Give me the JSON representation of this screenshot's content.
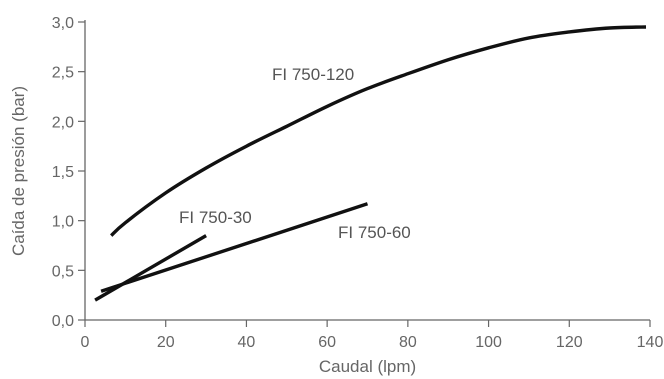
{
  "chart_data": {
    "type": "line",
    "xlabel": "Caudal (lpm)",
    "ylabel": "Caída de presión (bar)",
    "xlim": [
      0,
      140
    ],
    "ylim": [
      0,
      3.0
    ],
    "x_ticks": [
      0,
      20,
      40,
      60,
      80,
      100,
      120,
      140
    ],
    "x_tick_labels": [
      "0",
      "20",
      "40",
      "60",
      "80",
      "100",
      "120",
      "140"
    ],
    "y_ticks": [
      0,
      0.5,
      1.0,
      1.5,
      2.0,
      2.5,
      3.0
    ],
    "y_tick_labels": [
      "0,0",
      "0,5",
      "1,0",
      "1,5",
      "2,0",
      "2,5",
      "3,0"
    ],
    "grid": false,
    "series": [
      {
        "name": "FI 750-120",
        "x": [
          6.5,
          10,
          20,
          30,
          40,
          50,
          60,
          70,
          80,
          90,
          100,
          110,
          120,
          130,
          139
        ],
        "y": [
          0.85,
          0.98,
          1.28,
          1.53,
          1.75,
          1.95,
          2.15,
          2.33,
          2.48,
          2.62,
          2.74,
          2.84,
          2.9,
          2.94,
          2.95
        ]
      },
      {
        "name": "FI 750-30",
        "x": [
          2.5,
          30
        ],
        "y": [
          0.2,
          0.85
        ]
      },
      {
        "name": "FI 750-60",
        "x": [
          4,
          70
        ],
        "y": [
          0.29,
          1.17
        ]
      }
    ]
  }
}
